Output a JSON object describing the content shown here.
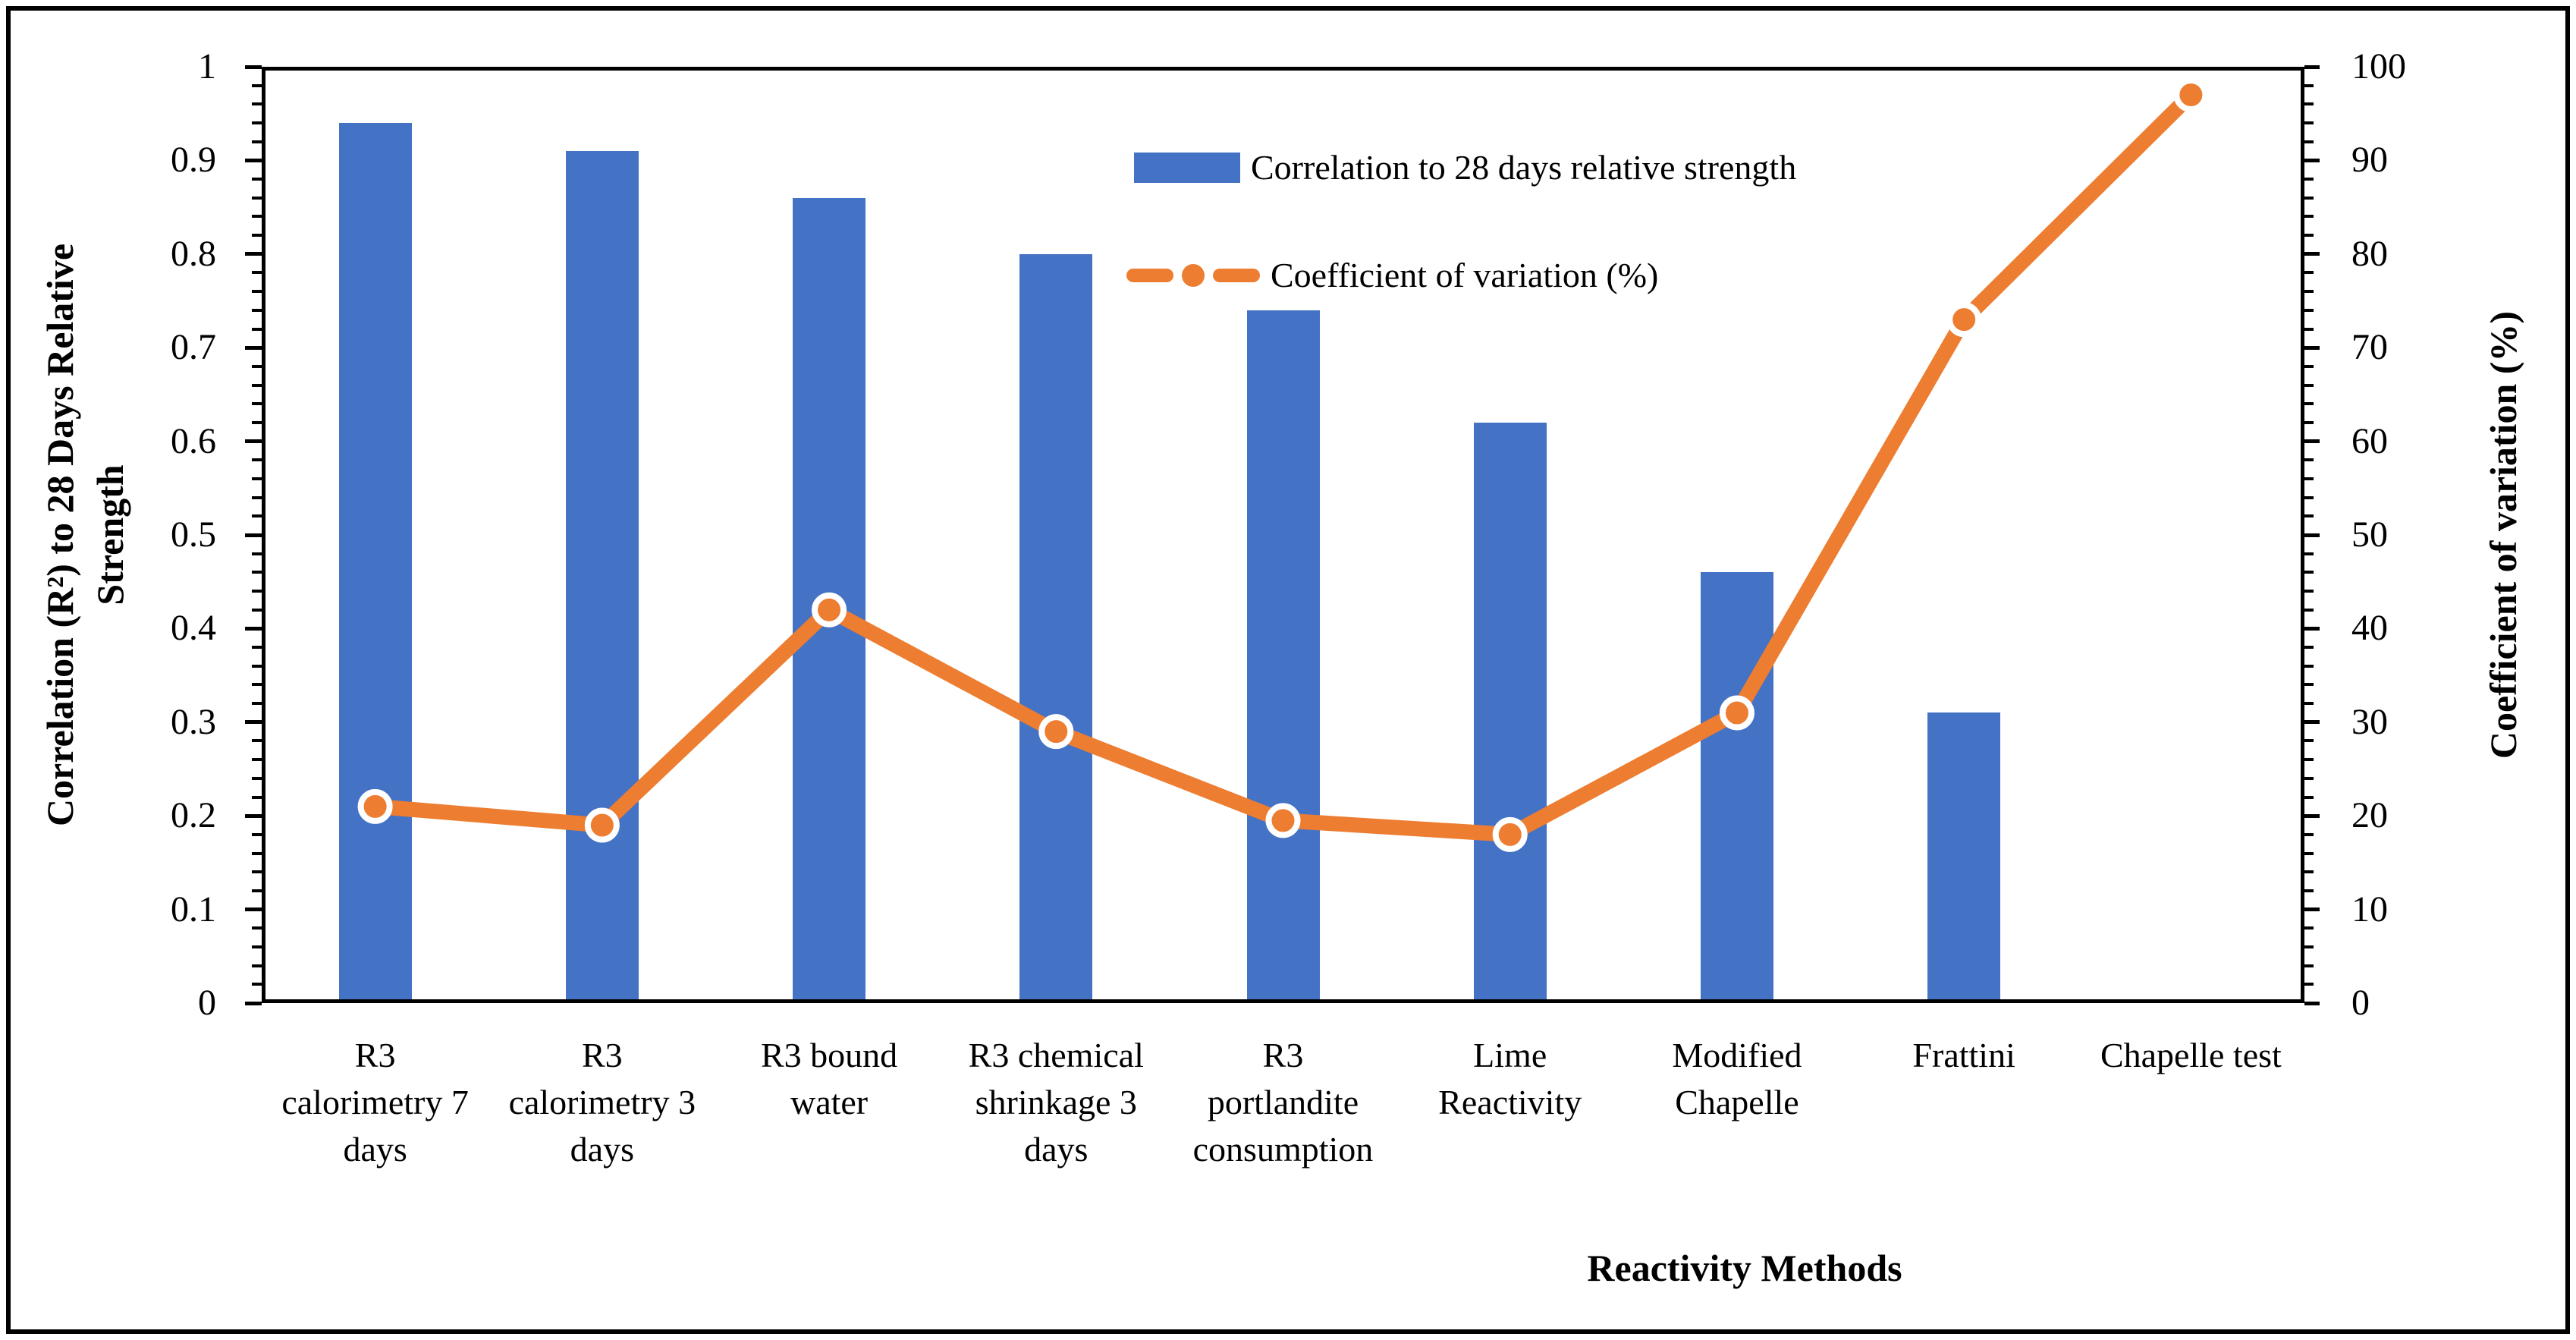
{
  "chart_data": {
    "type": "combo-bar-line",
    "categories": [
      {
        "label": "R3 calorimetry 7 days",
        "lines": [
          "R3",
          "calorimetry 7",
          "days"
        ]
      },
      {
        "label": "R3 calorimetry 3 days",
        "lines": [
          "R3",
          "calorimetry 3",
          "days"
        ]
      },
      {
        "label": "R3 bound water",
        "lines": [
          "R3 bound",
          "water"
        ]
      },
      {
        "label": "R3 chemical shrinkage 3 days",
        "lines": [
          "R3 chemical",
          "shrinkage 3",
          "days"
        ]
      },
      {
        "label": "R3 portlandite consumption",
        "lines": [
          "R3",
          "portlandite",
          "consumption"
        ]
      },
      {
        "label": "Lime Reactivity",
        "lines": [
          "Lime",
          "Reactivity"
        ]
      },
      {
        "label": "Modified Chapelle",
        "lines": [
          "Modified",
          "Chapelle"
        ]
      },
      {
        "label": "Frattini",
        "lines": [
          "Frattini"
        ]
      },
      {
        "label": "Chapelle test",
        "lines": [
          "Chapelle test"
        ]
      }
    ],
    "series": [
      {
        "name": "Correlation to 28 days relative strength",
        "type": "bar",
        "axis": "left",
        "color": "#4472C4",
        "values": [
          0.94,
          0.91,
          0.86,
          0.8,
          0.74,
          0.62,
          0.46,
          0.31,
          null
        ]
      },
      {
        "name": "Coefficient of variation (%)",
        "type": "line",
        "axis": "right",
        "color": "#ED7D31",
        "marker_fill": "#ED7D31",
        "marker_border": "#FFFFFF",
        "values": [
          21,
          19,
          42,
          29,
          19.5,
          18,
          31,
          73,
          97
        ]
      }
    ],
    "left_axis": {
      "title": "Correlation (R²) to 28 Days Relative Strength",
      "title_lines": [
        "Correlation (R²) to 28 Days Relative",
        "Strength"
      ],
      "min": 0,
      "max": 1,
      "major": 0.1,
      "minor": 0.02,
      "tick_labels": [
        "1",
        "0.9",
        "0.8",
        "0.7",
        "0.6",
        "0.5",
        "0.4",
        "0.3",
        "0.2",
        "0.1",
        "0"
      ]
    },
    "right_axis": {
      "title": "Coefficient of variation (%)",
      "min": 0,
      "max": 100,
      "major": 10,
      "minor": 2,
      "tick_labels": [
        "100",
        "90",
        "80",
        "70",
        "60",
        "50",
        "40",
        "30",
        "20",
        "10",
        "0"
      ]
    },
    "x_axis": {
      "title": "Reactivity Methods"
    },
    "legend": {
      "position": "top-right-inside"
    },
    "colors": {
      "axis": "#000000",
      "background": "#FFFFFF"
    }
  }
}
